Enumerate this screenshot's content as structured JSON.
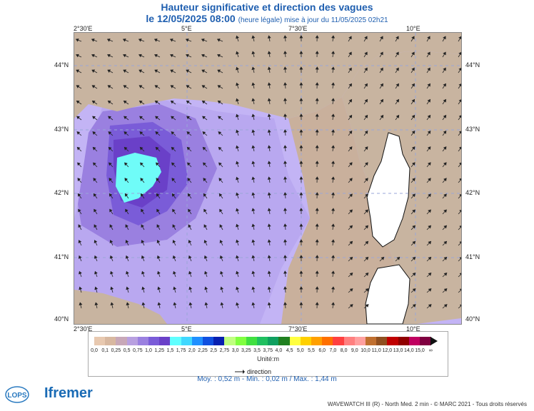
{
  "title": "Hauteur significative et direction des vagues",
  "subtitle_date": "le 12/05/2025 08:00",
  "subtitle_note": "(heure légale) mise à jour du 11/05/2025 02h21",
  "axes": {
    "lon_ticks": [
      "2°30'E",
      "5°E",
      "7°30'E",
      "10°E"
    ],
    "lat_ticks": [
      "44°N",
      "43°N",
      "42°N",
      "41°N",
      "40°N"
    ]
  },
  "colorbar": {
    "labels": [
      "0,0",
      "0,1",
      "0,25",
      "0,5",
      "0,75",
      "1,0",
      "1,25",
      "1,5",
      "1,75",
      "2,0",
      "2,25",
      "2,5",
      "2,75",
      "3,0",
      "3,25",
      "3,5",
      "3,75",
      "4,0",
      "4,5",
      "5,0",
      "5,5",
      "6,0",
      "7,0",
      "8,0",
      "9,0",
      "10,0",
      "11,0",
      "12,0",
      "13,0",
      "14,0",
      "15,0",
      "∞"
    ],
    "colors": [
      "#e8c9b0",
      "#d8b8a0",
      "#c8a8b8",
      "#b8a0e0",
      "#9a80e0",
      "#7a5cd8",
      "#6a40c8",
      "#60ffff",
      "#40d8ff",
      "#2090ff",
      "#1050e0",
      "#0820b0",
      "#c0ff80",
      "#80ff40",
      "#40e040",
      "#20c060",
      "#10a060",
      "#208020",
      "#ffff40",
      "#ffd000",
      "#ffa000",
      "#ff7000",
      "#ff4040",
      "#ff8080",
      "#ffa0a0",
      "#c07030",
      "#905020",
      "#c00000",
      "#900000",
      "#c00060",
      "#800040"
    ],
    "unit": "Unité:m"
  },
  "direction_label": "direction",
  "stats": "Moy. : 0,52 m   -   Min. : 0,02 m / Max. : 1,44 m",
  "credit": "WAVEWATCH III (R) - North Med. 2 min - © MARC 2021 - Tous droits réservés",
  "logos": {
    "lops": "LOPS",
    "ifremer": "Ifremer"
  }
}
